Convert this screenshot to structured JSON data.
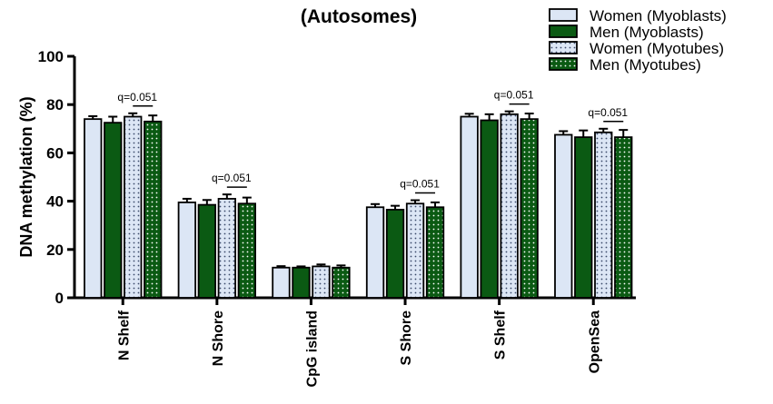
{
  "chart_data": {
    "type": "bar",
    "title": "(Autosomes)",
    "ylabel": "DNA methylation  (%)",
    "xlabel": "",
    "ylim": [
      0,
      100
    ],
    "yticks": [
      "0",
      "20",
      "40",
      "60",
      "80",
      "100"
    ],
    "categories": [
      "N Shelf",
      "N Shore",
      "CpG island",
      "S Shore",
      "S Shelf",
      "OpenSea"
    ],
    "series": [
      {
        "name": "Women (Myoblasts)",
        "fill": "#dce6f5",
        "pattern": "solid",
        "values": [
          74,
          39.5,
          12.5,
          37.5,
          75,
          67.5
        ],
        "errors": [
          1.2,
          1.5,
          0.6,
          1.3,
          1.2,
          1.5
        ]
      },
      {
        "name": "Men (Myoblasts)",
        "fill": "#0b5a13",
        "pattern": "solid",
        "values": [
          72.5,
          38.5,
          12.5,
          36.5,
          73.5,
          66.5
        ],
        "errors": [
          2.5,
          2.0,
          0.5,
          1.6,
          2.5,
          2.8
        ]
      },
      {
        "name": "Women (Myotubes)",
        "fill": "#dce6f5",
        "pattern": "dotted",
        "values": [
          75,
          41,
          13,
          39,
          76,
          68.5
        ],
        "errors": [
          1.4,
          1.8,
          0.8,
          1.4,
          1.2,
          1.5
        ]
      },
      {
        "name": "Men (Myotubes)",
        "fill": "#0b5a13",
        "pattern": "dotted",
        "values": [
          73,
          39,
          12.5,
          37.5,
          74,
          66.5
        ],
        "errors": [
          2.5,
          2.5,
          0.9,
          2.0,
          2.3,
          3.0
        ]
      }
    ],
    "annotations": [
      {
        "category_index": 0,
        "text": "q=0.051"
      },
      {
        "category_index": 1,
        "text": "q=0.051"
      },
      {
        "category_index": 3,
        "text": "q=0.051"
      },
      {
        "category_index": 4,
        "text": "q=0.051"
      },
      {
        "category_index": 5,
        "text": "q=0.051"
      }
    ],
    "legend_position": "top-right",
    "grid": false
  }
}
